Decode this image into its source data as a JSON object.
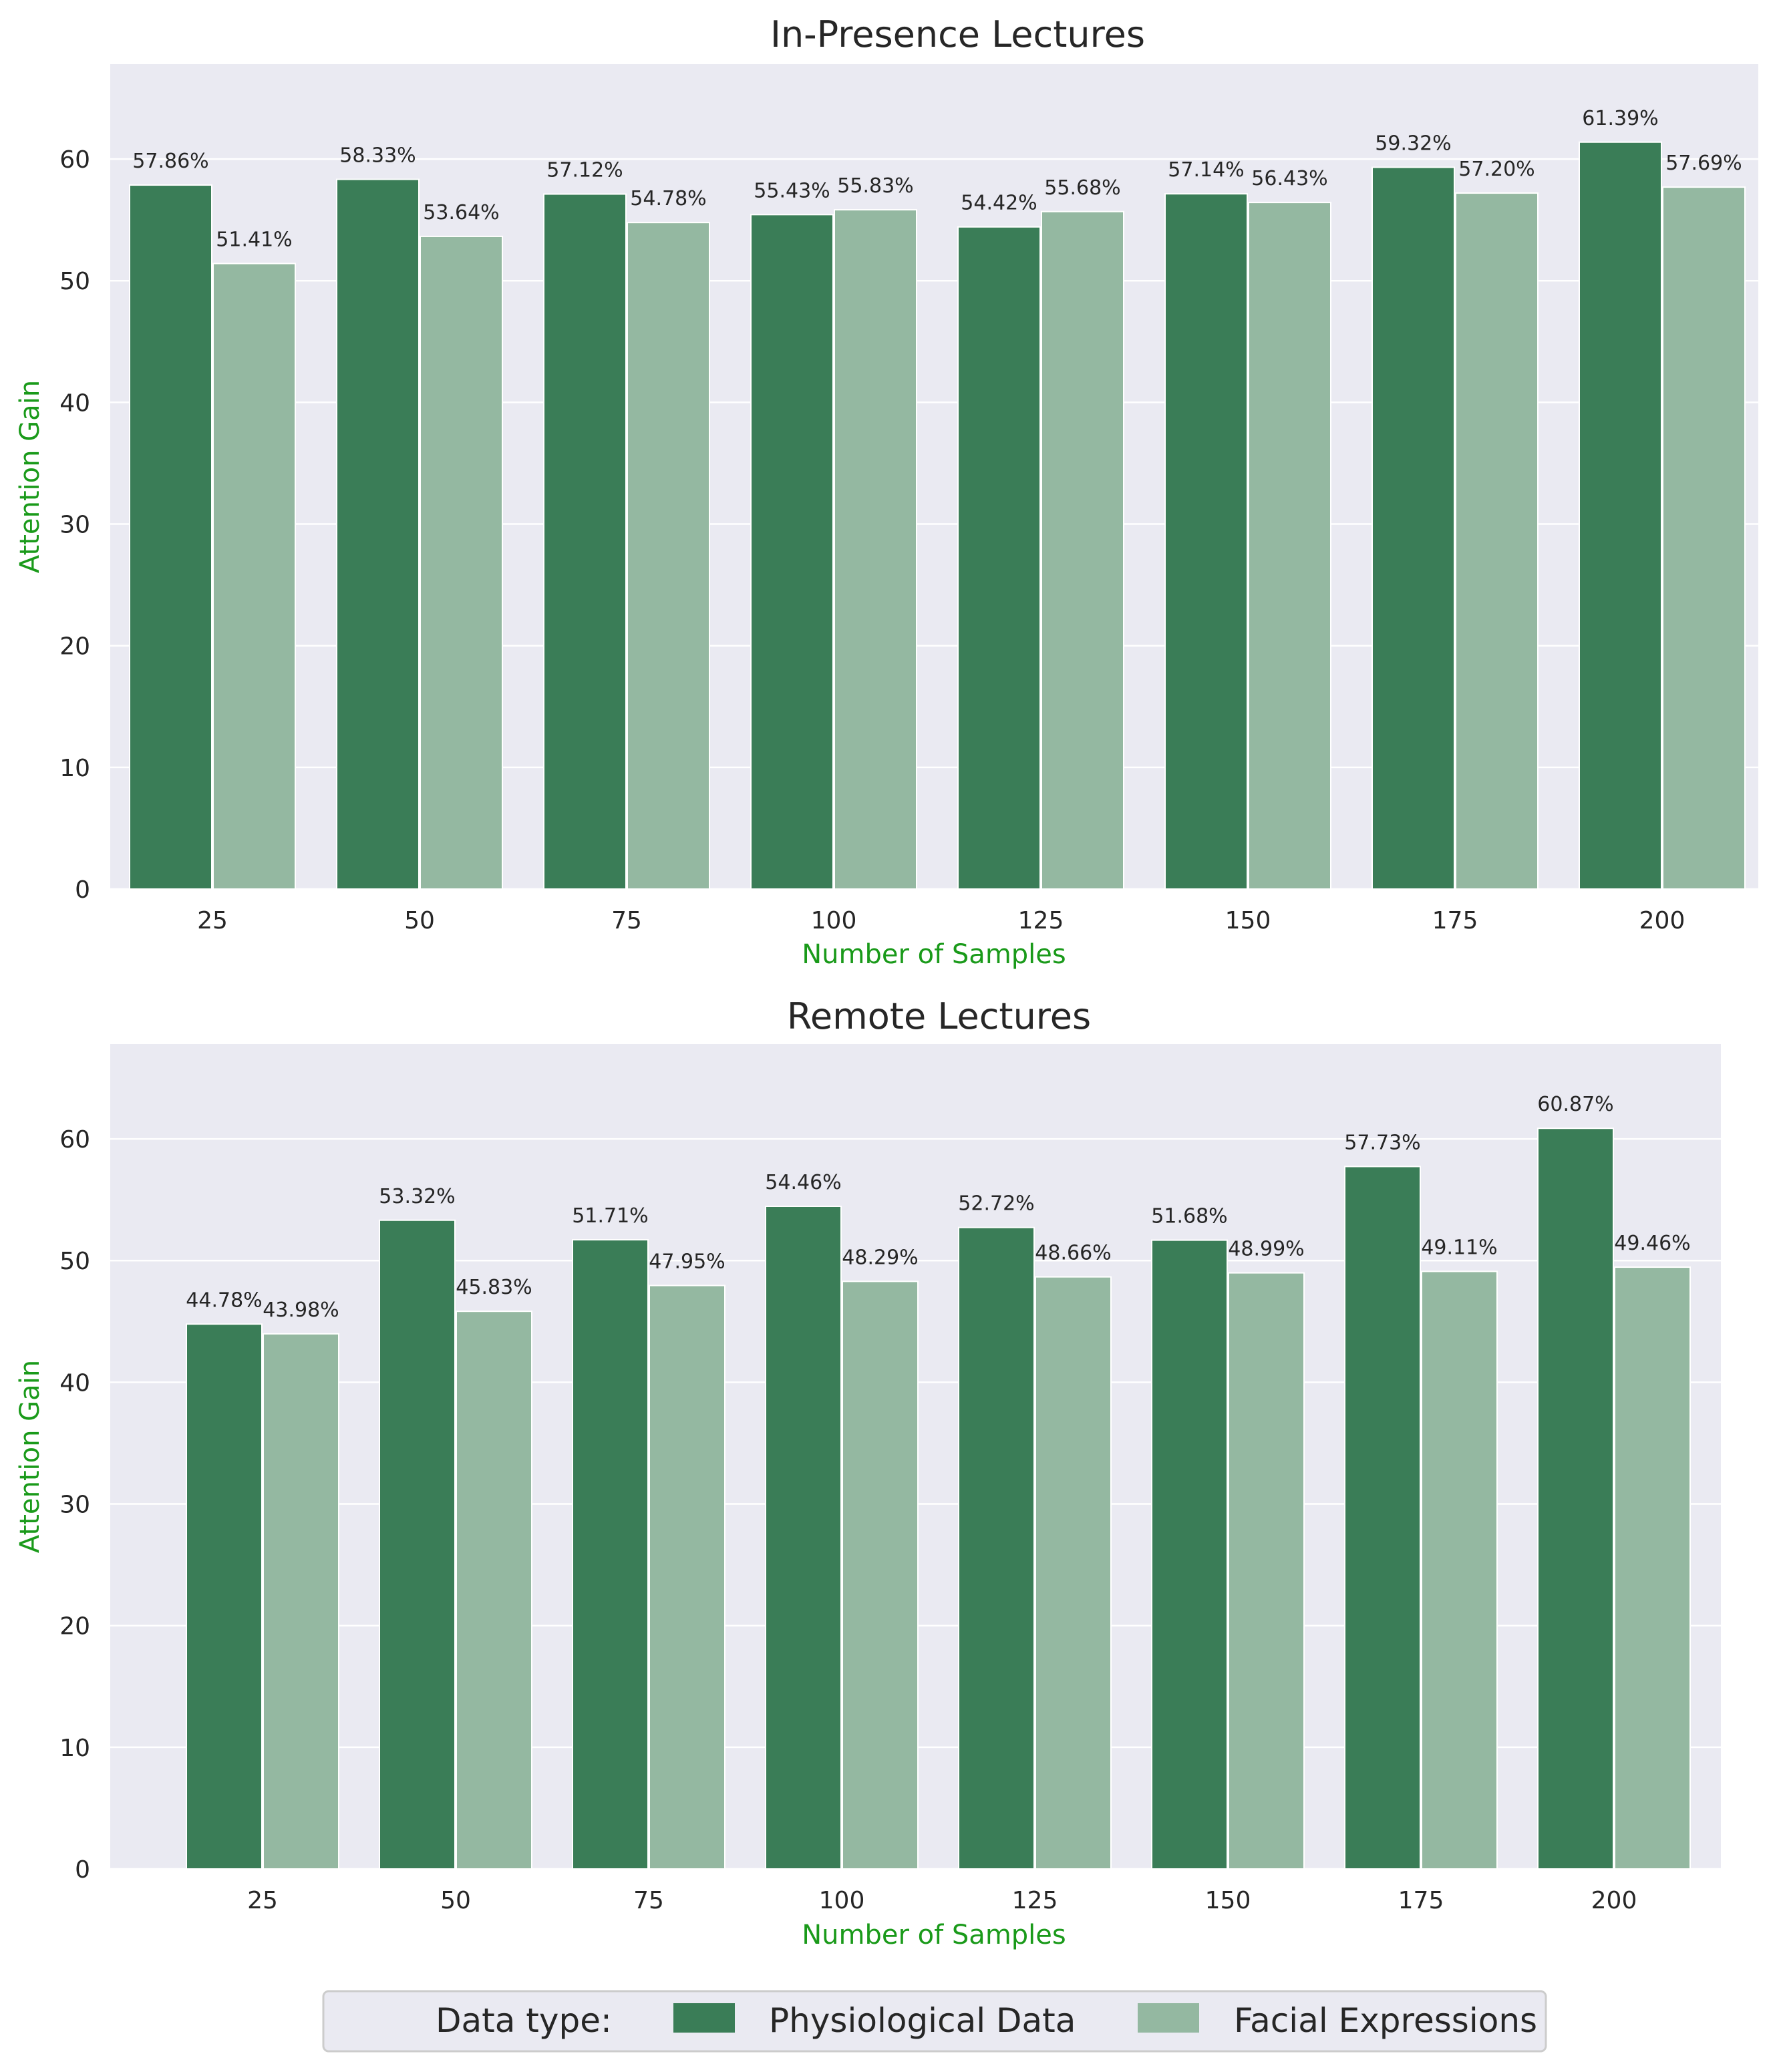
{
  "colors": {
    "background": "#eaeaf2",
    "grid": "#ffffff",
    "physiological": "#3a7d57",
    "facial": "#94b8a1",
    "axis_label": "#1a9a1a"
  },
  "legend": {
    "title": "Data type:",
    "entries": [
      "Physiological Data",
      "Facial Expressions"
    ]
  },
  "chart_data": [
    {
      "type": "bar",
      "title": "In-Presence Lectures",
      "xlabel": "Number of Samples",
      "ylabel": "Attention Gain",
      "categories": [
        "25",
        "50",
        "75",
        "100",
        "125",
        "150",
        "175",
        "200"
      ],
      "ylim": [
        0,
        67.8
      ],
      "yticks": [
        0,
        10,
        20,
        30,
        40,
        50,
        60
      ],
      "grid": true,
      "series": [
        {
          "name": "Physiological Data",
          "values": [
            57.86,
            58.33,
            57.12,
            55.43,
            54.42,
            57.14,
            59.32,
            61.39
          ],
          "labels": [
            "57.86%",
            "58.33%",
            "57.12%",
            "55.43%",
            "54.42%",
            "57.14%",
            "59.32%",
            "61.39%"
          ]
        },
        {
          "name": "Facial Expressions",
          "values": [
            51.41,
            53.64,
            54.78,
            55.83,
            55.68,
            56.43,
            57.2,
            57.69
          ],
          "labels": [
            "51.41%",
            "53.64%",
            "54.78%",
            "55.83%",
            "55.68%",
            "56.43%",
            "57.20%",
            "57.69%"
          ]
        }
      ]
    },
    {
      "type": "bar",
      "title": "Remote Lectures",
      "xlabel": "Number of Samples",
      "ylabel": "Attention Gain",
      "categories": [
        "25",
        "50",
        "75",
        "100",
        "125",
        "150",
        "175",
        "200"
      ],
      "ylim": [
        0,
        67.8
      ],
      "yticks": [
        0,
        10,
        20,
        30,
        40,
        50,
        60
      ],
      "grid": true,
      "series": [
        {
          "name": "Physiological Data",
          "values": [
            44.78,
            53.32,
            51.71,
            54.46,
            52.72,
            51.68,
            57.73,
            60.87
          ],
          "labels": [
            "44.78%",
            "53.32%",
            "51.71%",
            "54.46%",
            "52.72%",
            "51.68%",
            "57.73%",
            "60.87%"
          ]
        },
        {
          "name": "Facial Expressions",
          "values": [
            43.98,
            45.83,
            47.95,
            48.29,
            48.66,
            48.99,
            49.11,
            49.46
          ],
          "labels": [
            "43.98%",
            "45.83%",
            "47.95%",
            "48.29%",
            "48.66%",
            "48.99%",
            "49.11%",
            "49.46%"
          ]
        }
      ]
    }
  ]
}
